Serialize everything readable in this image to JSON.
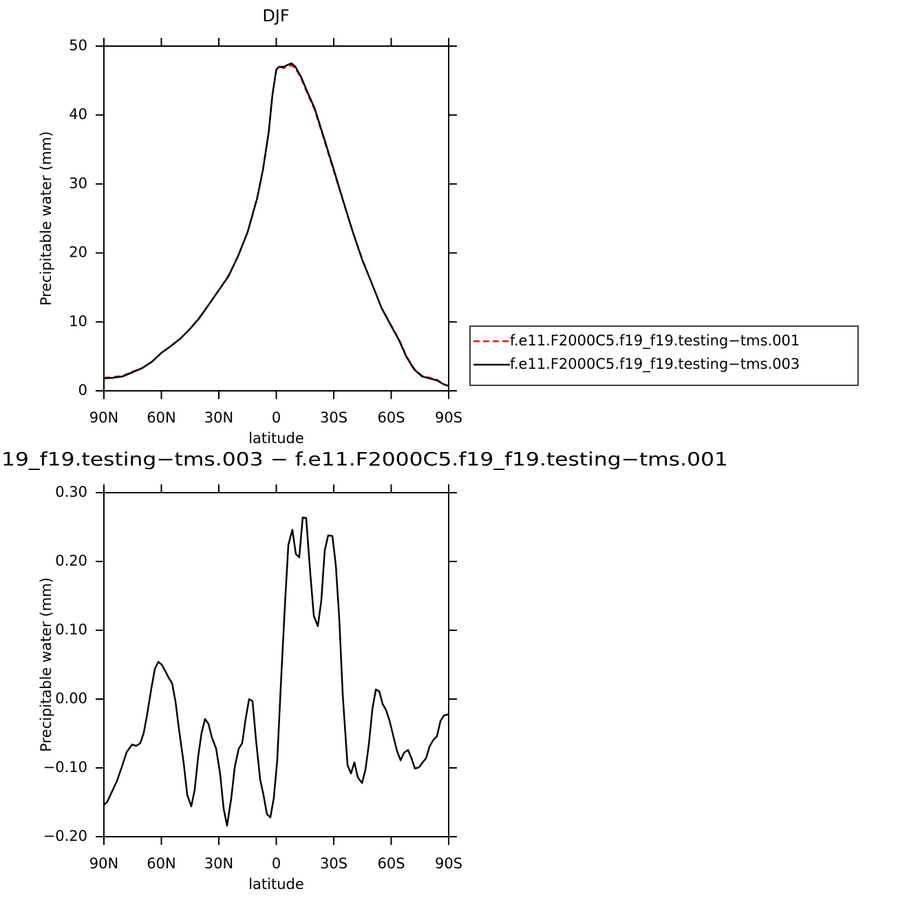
{
  "chart_data": [
    {
      "type": "line",
      "title": "DJF",
      "xlabel": "latitude",
      "ylabel": "Precipitable water (mm)",
      "x": [
        90,
        85,
        80,
        75,
        70,
        65,
        60,
        55,
        50,
        45,
        40,
        35,
        30,
        25,
        20,
        15,
        10,
        7,
        4,
        2,
        0,
        -1.5,
        -4,
        -6,
        -8,
        -10,
        -13,
        -16,
        -20,
        -25,
        -30,
        -35,
        -40,
        -45,
        -50,
        -55,
        -60,
        -64,
        -68,
        -72,
        -76,
        -80,
        -84,
        -87,
        -90
      ],
      "series": [
        {
          "name": "f.e11.F2000C5.f19_f19.testing−tms.001",
          "color": "#ff0000",
          "dash": "dashed",
          "values": [
            1.9,
            2.0,
            2.2,
            2.8,
            3.3,
            4.2,
            5.5,
            6.5,
            7.6,
            9.0,
            10.7,
            12.6,
            14.6,
            16.7,
            19.5,
            23.0,
            28.0,
            32.0,
            37.5,
            43.0,
            46.5,
            47.0,
            46.8,
            47.1,
            47.2,
            46.8,
            45.3,
            43.3,
            40.8,
            36.4,
            31.9,
            27.4,
            23.0,
            19.0,
            15.5,
            12.0,
            9.5,
            7.5,
            5.0,
            3.2,
            2.2,
            1.9,
            1.6,
            1.0,
            0.7
          ]
        },
        {
          "name": "f.e11.F2000C5.f19_f19.testing−tms.003",
          "color": "#000000",
          "dash": "solid",
          "values": [
            1.8,
            1.9,
            2.1,
            2.7,
            3.3,
            4.2,
            5.5,
            6.5,
            7.6,
            9.0,
            10.6,
            12.6,
            14.6,
            16.6,
            19.5,
            23.0,
            27.9,
            32.0,
            37.4,
            42.9,
            46.6,
            47.0,
            47.0,
            47.3,
            47.5,
            47.0,
            45.5,
            43.5,
            41.0,
            36.6,
            32.1,
            27.5,
            23.0,
            18.9,
            15.5,
            12.0,
            9.4,
            7.4,
            4.9,
            3.1,
            2.1,
            1.8,
            1.5,
            1.0,
            0.7
          ]
        }
      ],
      "xlim": [
        90,
        -90
      ],
      "ylim": [
        0,
        50
      ],
      "xticks": [
        {
          "value": 90,
          "label": "90N"
        },
        {
          "value": 60,
          "label": "60N"
        },
        {
          "value": 30,
          "label": "30N"
        },
        0,
        {
          "value": -30,
          "label": "30S"
        },
        {
          "value": -60,
          "label": "60S"
        },
        {
          "value": -90,
          "label": "90S"
        }
      ],
      "yticks": [
        0,
        10,
        20,
        30,
        40,
        50
      ],
      "legend": "right"
    },
    {
      "type": "line",
      "title": "19_f19.testing−tms.003 − f.e11.F2000C5.f19_f19.testing−tms.001",
      "xlabel": "latitude",
      "ylabel": "Precipitable water (mm)",
      "x": [
        90,
        88.2,
        85.7,
        83.2,
        80.7,
        78.1,
        75.3,
        73.1,
        71.0,
        69.2,
        67.4,
        65.2,
        63.4,
        61.6,
        59.8,
        58.0,
        56.2,
        54.4,
        52.6,
        50.8,
        48.3,
        46.5,
        44.4,
        42.6,
        40.8,
        39.0,
        37.2,
        35.4,
        33.6,
        31.4,
        29.3,
        27.5,
        25.7,
        23.5,
        21.7,
        19.6,
        17.8,
        16.0,
        14.2,
        12.4,
        10.6,
        8.4,
        6.7,
        4.9,
        3.1,
        1.3,
        -0.5,
        -2.3,
        -4.5,
        -6.3,
        -8.4,
        -10.2,
        -12.0,
        -13.8,
        -15.6,
        -17.8,
        -19.6,
        -21.7,
        -23.5,
        -25.3,
        -27.1,
        -29.3,
        -31.1,
        -32.9,
        -34.7,
        -37.2,
        -39.0,
        -40.8,
        -42.6,
        -44.8,
        -46.6,
        -48.4,
        -50.2,
        -52.0,
        -53.8,
        -55.5,
        -57.3,
        -59.2,
        -61.3,
        -63.1,
        -64.9,
        -66.7,
        -68.8,
        -70.6,
        -72.4,
        -74.6,
        -76.4,
        -78.2,
        -80.0,
        -82.1,
        -83.9,
        -85.7,
        -87.5,
        -90
      ],
      "series": [
        {
          "color": "#000000",
          "dash": "solid",
          "values": [
            -0.154,
            -0.149,
            -0.134,
            -0.119,
            -0.099,
            -0.077,
            -0.066,
            -0.068,
            -0.064,
            -0.049,
            -0.022,
            0.016,
            0.044,
            0.054,
            0.05,
            0.041,
            0.031,
            0.023,
            -0.004,
            -0.044,
            -0.094,
            -0.139,
            -0.156,
            -0.132,
            -0.084,
            -0.049,
            -0.029,
            -0.036,
            -0.056,
            -0.072,
            -0.109,
            -0.159,
            -0.184,
            -0.144,
            -0.099,
            -0.072,
            -0.064,
            -0.029,
            0.0,
            -0.003,
            -0.059,
            -0.117,
            -0.139,
            -0.167,
            -0.172,
            -0.144,
            -0.089,
            0.016,
            0.136,
            0.224,
            0.246,
            0.211,
            0.206,
            0.264,
            0.263,
            0.181,
            0.121,
            0.106,
            0.143,
            0.216,
            0.238,
            0.237,
            0.194,
            0.116,
            0.006,
            -0.096,
            -0.108,
            -0.092,
            -0.114,
            -0.122,
            -0.102,
            -0.064,
            -0.014,
            0.014,
            0.011,
            -0.007,
            -0.016,
            -0.032,
            -0.056,
            -0.076,
            -0.089,
            -0.078,
            -0.074,
            -0.086,
            -0.101,
            -0.099,
            -0.092,
            -0.086,
            -0.069,
            -0.059,
            -0.054,
            -0.032,
            -0.024,
            -0.022
          ]
        }
      ],
      "xlim": [
        90,
        -90
      ],
      "ylim": [
        -0.2,
        0.3
      ],
      "xticks": [
        {
          "value": 90,
          "label": "90N"
        },
        {
          "value": 60,
          "label": "60N"
        },
        {
          "value": 30,
          "label": "30N"
        },
        0,
        {
          "value": -30,
          "label": "30S"
        },
        {
          "value": -60,
          "label": "60S"
        },
        {
          "value": -90,
          "label": "90S"
        }
      ],
      "yticks": [
        {
          "value": 0.3,
          "label": "0.30"
        },
        {
          "value": 0.2,
          "label": "0.20"
        },
        {
          "value": 0.1,
          "label": "0.10"
        },
        {
          "value": 0,
          "label": "0.00"
        },
        {
          "value": -0.1,
          "label": "−0.10"
        },
        {
          "value": -0.2,
          "label": "−0.20"
        }
      ]
    }
  ]
}
